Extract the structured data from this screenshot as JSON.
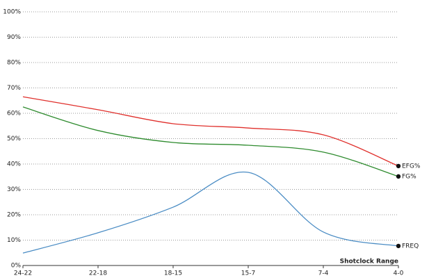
{
  "chart_data": {
    "type": "line",
    "x_label": "Shotclock Range",
    "categories": [
      "24-22",
      "22-18",
      "18-15",
      "15-7",
      "7-4",
      "4-0"
    ],
    "series": [
      {
        "name": "EFG%",
        "color": "#e0302c",
        "values": [
          66.5,
          61.4,
          55.9,
          54.2,
          51.5,
          39.2
        ]
      },
      {
        "name": "FG%",
        "color": "#2e8b2e",
        "values": [
          62.5,
          53.2,
          48.5,
          47.4,
          44.7,
          35.1
        ]
      },
      {
        "name": "FREQ",
        "color": "#4a8cc4",
        "values": [
          4.9,
          12.9,
          23,
          36.7,
          13.2,
          7.7
        ]
      }
    ],
    "ylim": [
      0,
      100
    ],
    "yticks": [
      {
        "value": 0,
        "label": "0%"
      },
      {
        "value": 10,
        "label": "10%"
      },
      {
        "value": 20,
        "label": "20%"
      },
      {
        "value": 30,
        "label": "30%"
      },
      {
        "value": 40,
        "label": "40%"
      },
      {
        "value": 50,
        "label": "50%"
      },
      {
        "value": 60,
        "label": "60%"
      },
      {
        "value": 70,
        "label": "70%"
      },
      {
        "value": 80,
        "label": "80%"
      },
      {
        "value": 90,
        "label": "90%"
      },
      {
        "value": 100,
        "label": "100%"
      }
    ],
    "grid": true
  }
}
